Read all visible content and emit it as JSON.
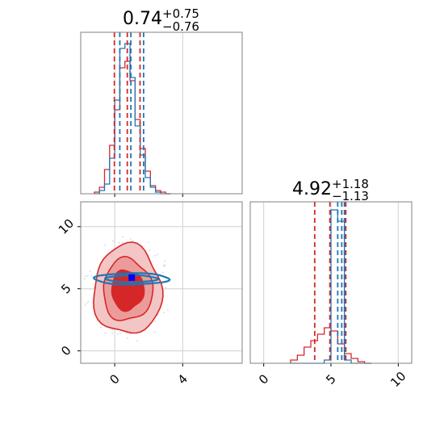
{
  "chart_data": {
    "type": "corner",
    "grid": true,
    "colors": {
      "red": "#d62728",
      "blue": "#1f77b4",
      "marker": "#0000ff"
    },
    "panels": [
      {
        "id": "param0-histogram",
        "title": {
          "value": "0.74",
          "plus": "+0.75",
          "minus": "−0.76"
        },
        "xlim": [
          -2,
          7.5
        ],
        "ylim": [
          0,
          1.0
        ],
        "bin_edges": [
          -1.2,
          -0.9,
          -0.6,
          -0.3,
          0.0,
          0.3,
          0.6,
          0.9,
          1.2,
          1.5,
          1.8,
          2.1,
          2.4,
          2.7,
          3.0,
          3.3
        ],
        "series": [
          {
            "color": "red",
            "values": [
              0.01,
              0.04,
              0.15,
              0.3,
              0.52,
              0.78,
              0.82,
              0.7,
              0.46,
              0.28,
              0.14,
              0.05,
              0.02,
              0.01,
              0.0
            ]
          },
          {
            "color": "blue",
            "values": [
              0.0,
              0.02,
              0.06,
              0.22,
              0.58,
              0.9,
              0.93,
              0.72,
              0.42,
              0.24,
              0.1,
              0.04,
              0.01,
              0.0,
              0.0
            ]
          }
        ],
        "quantile_lines": [
          {
            "color": "red",
            "x": [
              -0.02,
              0.74,
              1.49
            ]
          },
          {
            "color": "blue",
            "x": [
              0.3,
              0.95,
              1.7
            ]
          }
        ]
      },
      {
        "id": "param1-histogram",
        "title": {
          "value": "4.92",
          "plus": "+1.18",
          "minus": "−1.13"
        },
        "xlim": [
          -1,
          11
        ],
        "ylim": [
          0,
          1.0
        ],
        "bin_edges": [
          2.0,
          2.5,
          3.0,
          3.5,
          4.0,
          4.5,
          5.0,
          5.5,
          6.0,
          6.5,
          7.0,
          7.5,
          8.0
        ],
        "series": [
          {
            "color": "red",
            "values": [
              0.02,
              0.05,
              0.1,
              0.14,
              0.18,
              0.22,
              0.2,
              0.12,
              0.06,
              0.03,
              0.01,
              0.0
            ]
          },
          {
            "color": "blue",
            "values": [
              0.0,
              0.0,
              0.0,
              0.0,
              0.0,
              0.02,
              0.95,
              0.88,
              0.02,
              0.0,
              0.0,
              0.0
            ]
          }
        ],
        "quantile_lines": [
          {
            "color": "red",
            "x": [
              3.79,
              4.92,
              6.1
            ]
          },
          {
            "color": "blue",
            "x": [
              5.5,
              5.8,
              6.0
            ]
          }
        ],
        "x_ticks": [
          "0",
          "5",
          "10"
        ]
      },
      {
        "id": "param0-vs-param1",
        "xlim": [
          -2,
          7.5
        ],
        "ylim": [
          -1,
          12
        ],
        "x_ticks": [
          "0",
          "4"
        ],
        "y_ticks": [
          "0",
          "5",
          "10"
        ],
        "red_contours": [
          {
            "cx": 0.75,
            "cy": 4.9,
            "rx": 2.0,
            "ry": 3.6
          },
          {
            "cx": 0.75,
            "cy": 4.9,
            "rx": 1.45,
            "ry": 2.5
          },
          {
            "cx": 0.75,
            "cy": 4.9,
            "rx": 0.95,
            "ry": 1.6
          }
        ],
        "blue_contours": [
          {
            "cx": 1.0,
            "cy": 5.8,
            "rx": 2.2,
            "ry": 0.45
          },
          {
            "cx": 1.0,
            "cy": 5.8,
            "rx": 1.5,
            "ry": 0.28
          }
        ],
        "markers": [
          {
            "color": "red",
            "x": 0.7,
            "y": 4.8
          },
          {
            "color": "marker",
            "x": 1.0,
            "y": 5.9
          }
        ]
      }
    ]
  }
}
